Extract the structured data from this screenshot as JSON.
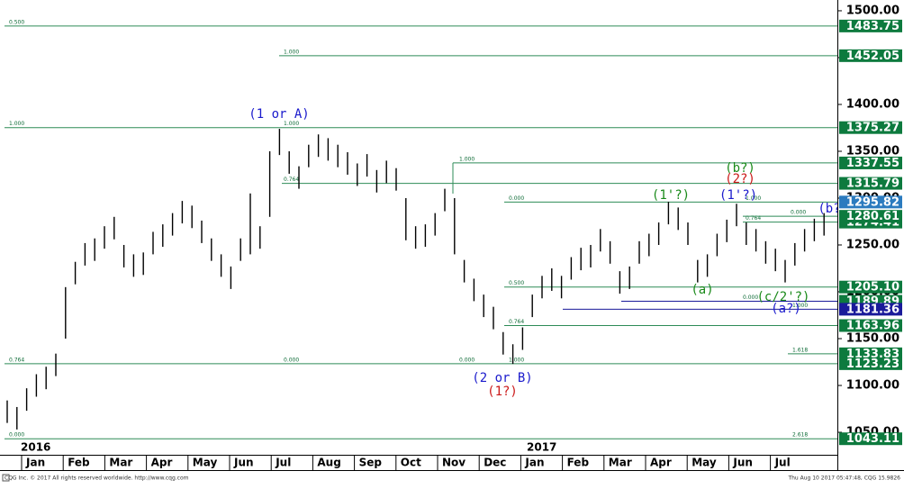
{
  "chart_data": {
    "type": "range-bar",
    "high": [
      1084,
      1077,
      1097,
      1112,
      1120,
      1134,
      1205,
      1232,
      1252,
      1257,
      1270,
      1280,
      1250,
      1240,
      1242,
      1264,
      1272,
      1284,
      1297,
      1292,
      1276,
      1257,
      1240,
      1227,
      1257,
      1305,
      1270,
      1350,
      1374,
      1350,
      1334,
      1357,
      1368,
      1364,
      1357,
      1349,
      1337,
      1347,
      1330,
      1340,
      1332,
      1300,
      1270,
      1272,
      1284,
      1310,
      1300,
      1234,
      1214,
      1197,
      1184,
      1157,
      1144,
      1162,
      1197,
      1217,
      1225,
      1217,
      1237,
      1247,
      1250,
      1267,
      1254,
      1222,
      1227,
      1254,
      1262,
      1274,
      1296,
      1290,
      1274,
      1234,
      1240,
      1262,
      1277,
      1294,
      1274,
      1267,
      1254,
      1246,
      1234,
      1252,
      1267,
      1278,
      1284
    ],
    "low": [
      1060,
      1053,
      1073,
      1088,
      1096,
      1110,
      1150,
      1208,
      1228,
      1233,
      1246,
      1256,
      1226,
      1216,
      1218,
      1240,
      1248,
      1260,
      1273,
      1268,
      1252,
      1233,
      1216,
      1203,
      1233,
      1240,
      1246,
      1280,
      1346,
      1326,
      1310,
      1333,
      1344,
      1340,
      1333,
      1325,
      1313,
      1323,
      1306,
      1316,
      1308,
      1255,
      1246,
      1248,
      1260,
      1286,
      1240,
      1210,
      1190,
      1173,
      1160,
      1133,
      1123,
      1138,
      1173,
      1193,
      1201,
      1193,
      1213,
      1223,
      1226,
      1243,
      1230,
      1198,
      1203,
      1230,
      1238,
      1250,
      1272,
      1266,
      1250,
      1210,
      1216,
      1238,
      1253,
      1270,
      1250,
      1243,
      1230,
      1222,
      1210,
      1228,
      1243,
      1254,
      1260
    ],
    "bar_color": "#000000",
    "ylim": [
      1026,
      1511.5
    ],
    "yticks": [
      {
        "value": 1050,
        "label": "1050.00"
      },
      {
        "value": 1100,
        "label": "1100.00"
      },
      {
        "value": 1150,
        "label": "1150.00"
      },
      {
        "value": 1200,
        "label": "1200.00"
      },
      {
        "value": 1250,
        "label": "1250.00"
      },
      {
        "value": 1300,
        "label": "1300.00"
      },
      {
        "value": 1350,
        "label": "1350.00"
      },
      {
        "value": 1400,
        "label": "1400.00"
      },
      {
        "value": 1450,
        "label": "1450.00"
      },
      {
        "value": 1500,
        "label": "1500.00"
      }
    ],
    "categories": [
      "Jan",
      "Feb",
      "Mar",
      "Apr",
      "May",
      "Jun",
      "Jul",
      "Aug",
      "Sep",
      "Oct",
      "Nov",
      "Dec",
      "Jan",
      "Feb",
      "Mar",
      "Apr",
      "May",
      "Jun",
      "Jul"
    ],
    "years": [
      "2016",
      "2017"
    ],
    "fib_levels": [
      {
        "value": 1483.75,
        "ratios": [
          "0.500"
        ],
        "color": "#0d7a3e",
        "line_color": "#2e8b57"
      },
      {
        "value": 1452.05,
        "ratios": [
          "1.000"
        ],
        "color": "#0d7a3e",
        "line_color": "#2e8b57"
      },
      {
        "value": 1375.27,
        "ratios": [
          "1.000",
          "1.000"
        ],
        "color": "#0d7a3e",
        "line_color": "#2e8b57"
      },
      {
        "value": 1337.55,
        "ratios": [
          "1.000"
        ],
        "color": "#0d7a3e",
        "line_color": "#2e8b57"
      },
      {
        "value": 1315.79,
        "ratios": [
          "0.764"
        ],
        "color": "#0d7a3e",
        "line_color": "#2e8b57"
      },
      {
        "value": 1295.82,
        "ratios": [
          "0.000",
          "1.000"
        ],
        "color": "#2b7bbf",
        "line_color": "#2e8b57"
      },
      {
        "value": 1274.41,
        "ratios": [
          "0.764"
        ],
        "color": "#0d7a3e",
        "line_color": "#2e8b57"
      },
      {
        "value": 1280.61,
        "ratios": [
          "0.000"
        ],
        "color": "#0d7a3e",
        "line_color": "#2e8b57"
      },
      {
        "value": 1205.1,
        "label": "1205.10",
        "ratios": [
          "0.500"
        ],
        "color": "#0d7a3e",
        "line_color": "#2e8b57"
      },
      {
        "value": 1189.89,
        "ratios": [
          "0.000"
        ],
        "color": "#0d7a3e",
        "line_color": "#1a1a9a"
      },
      {
        "value": 1181.36,
        "ratios": [
          "1.000"
        ],
        "color": "#1a1a9a",
        "line_color": "#1a1a9a"
      },
      {
        "value": 1163.96,
        "ratios": [
          "0.764"
        ],
        "color": "#0d7a3e",
        "line_color": "#2e8b57"
      },
      {
        "value": 1133.83,
        "ratios": [
          "1.618"
        ],
        "color": "#0d7a3e",
        "line_color": "#2e8b57"
      },
      {
        "value": 1123.23,
        "ratios": [
          "0.764",
          "0.000",
          "0.000",
          "1.000"
        ],
        "color": "#0d7a3e",
        "line_color": "#2e8b57"
      },
      {
        "value": 1043.11,
        "ratios": [
          "0.000",
          "2.618"
        ],
        "color": "#0d7a3e",
        "line_color": "#2e8b57"
      }
    ],
    "annotations": [
      {
        "text": "(1 or A)",
        "color": "#1a1acc"
      },
      {
        "text": "(2 or B)",
        "color": "#1a1acc"
      },
      {
        "text": "(1?)",
        "color": "#cc1a1a"
      },
      {
        "text": "(b?)",
        "color": "#1a8a1a"
      },
      {
        "text": "(2?)",
        "color": "#cc1a1a"
      },
      {
        "text": "(1'?)",
        "color": "#1a8a1a"
      },
      {
        "text": "(1'?)",
        "color": "#1a1acc"
      },
      {
        "text": "(a)",
        "color": "#1a8a1a"
      },
      {
        "text": "(c/2'?)",
        "color": "#1a8a1a"
      },
      {
        "text": "(a?)",
        "color": "#1a1acc"
      },
      {
        "text": "(b?",
        "color": "#1a1acc"
      }
    ]
  },
  "footer": {
    "left": "CQG Inc. © 2017 All rights reserved worldwide. http://www.cqg.com",
    "right": "Thu Aug 10 2017 05:47:48, CQG 15.9826"
  }
}
